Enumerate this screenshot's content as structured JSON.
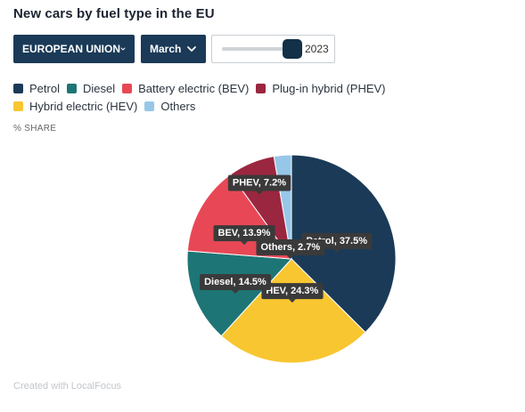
{
  "title": "New cars by fuel type in the EU",
  "controls": {
    "region": "EUROPEAN UNION",
    "month": "March",
    "year": "2023",
    "year_position": 0.95
  },
  "legend": [
    {
      "label": "Petrol",
      "color": "#1b3a57"
    },
    {
      "label": "Diesel",
      "color": "#1e7575"
    },
    {
      "label": "Battery electric (BEV)",
      "color": "#e84856"
    },
    {
      "label": "Plug-in hybrid (PHEV)",
      "color": "#9b2640"
    },
    {
      "label": "Hybrid electric (HEV)",
      "color": "#f8c630"
    },
    {
      "label": "Others",
      "color": "#97c7e8"
    }
  ],
  "unit_label": "% SHARE",
  "credit": "Created with LocalFocus",
  "chart_data": {
    "type": "pie",
    "slices": [
      {
        "name": "Petrol",
        "value": 37.5,
        "label": "Petrol, 37.5%",
        "color": "#1b3a57"
      },
      {
        "name": "HEV",
        "value": 24.3,
        "label": "HEV, 24.3%",
        "color": "#f8c630"
      },
      {
        "name": "Diesel",
        "value": 14.5,
        "label": "Diesel, 14.5%",
        "color": "#1e7575"
      },
      {
        "name": "BEV",
        "value": 13.9,
        "label": "BEV, 13.9%",
        "color": "#e84856"
      },
      {
        "name": "PHEV",
        "value": 7.2,
        "label": "PHEV, 7.2%",
        "color": "#9b2640"
      },
      {
        "name": "Others",
        "value": 2.7,
        "label": "Others, 2.7%",
        "color": "#97c7e8"
      }
    ]
  }
}
